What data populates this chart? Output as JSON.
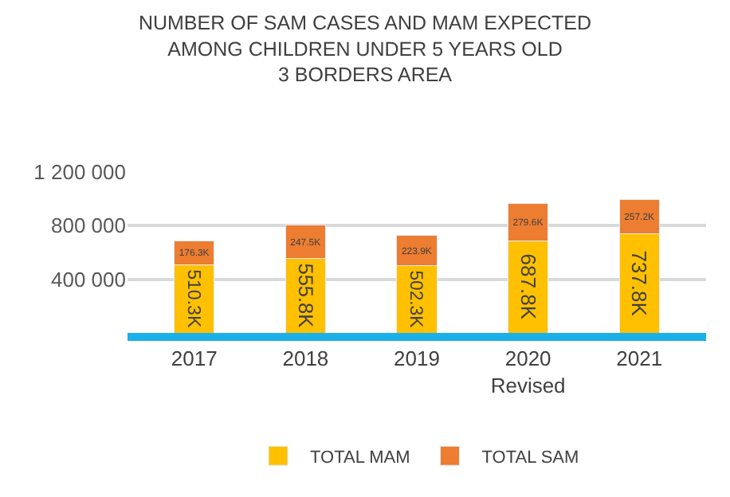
{
  "chart_data": {
    "type": "bar",
    "title": "NUMBER OF SAM CASES AND MAM EXPECTED\nAMONG CHILDREN UNDER 5 YEARS OLD\n3 BORDERS AREA",
    "categories": [
      "2017",
      "2018",
      "2019",
      "2020\nRevised",
      "2021"
    ],
    "stacked": true,
    "series": [
      {
        "name": "TOTAL MAM",
        "color": "#ffc000",
        "values": [
          510300,
          555800,
          502300,
          687800,
          737800
        ],
        "value_labels": [
          "510.3K",
          "555.8K",
          "502.3K",
          "687.8K",
          "737.8K"
        ]
      },
      {
        "name": "TOTAL SAM",
        "color": "#ed7d31",
        "values": [
          176300,
          247500,
          223900,
          279600,
          257200
        ],
        "value_labels": [
          "176.3K",
          "247.5K",
          "223.9K",
          "279.6K",
          "257.2K"
        ]
      }
    ],
    "ylim": [
      0,
      1200000
    ],
    "yticks": [
      {
        "value": 400000,
        "label": "400 000"
      },
      {
        "value": 800000,
        "label": "800 000"
      },
      {
        "value": 1200000,
        "label": "1 200 000"
      }
    ],
    "grid": "y",
    "legend": "bottom"
  }
}
